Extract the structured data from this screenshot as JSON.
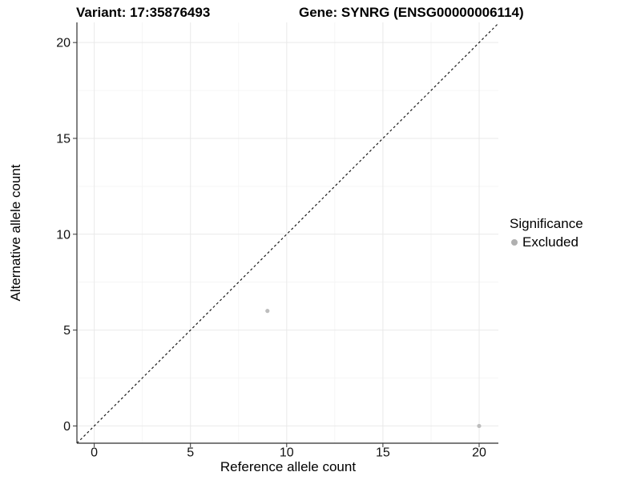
{
  "chart_data": {
    "type": "scatter",
    "title_left": "Variant: 17:35876493",
    "title_right": "Gene: SYNRG (ENSG00000006114)",
    "xlabel": "Reference allele count",
    "ylabel": "Alternative allele count",
    "xlim": [
      -0.9,
      21
    ],
    "ylim": [
      -0.9,
      21.05
    ],
    "xticks": [
      0,
      5,
      10,
      15,
      20
    ],
    "yticks": [
      0,
      5,
      10,
      15,
      20
    ],
    "minor_gridlines": [
      2.5,
      7.5,
      12.5,
      17.5
    ],
    "grid": true,
    "legend_position": "right",
    "identity_line": {
      "style": "dashed",
      "from": [
        -0.9,
        -0.9
      ],
      "to": [
        21,
        21
      ],
      "color": "#1a1a1a"
    },
    "series": [
      {
        "name": "Excluded",
        "color": "#bdbdbd",
        "points": [
          {
            "x": 9,
            "y": 6
          },
          {
            "x": 20,
            "y": 0
          }
        ]
      }
    ],
    "legend": {
      "title": "Significance",
      "items": [
        {
          "label": "Excluded",
          "color": "#b0b0b0"
        }
      ]
    },
    "style": {
      "grid_major_color": "#e9e9e9",
      "grid_minor_color": "#f4f4f4",
      "axis_line_color": "#2f2f2f",
      "tick_color": "#333333",
      "tick_label_color": "#111111",
      "point_radius": 2.6
    }
  }
}
